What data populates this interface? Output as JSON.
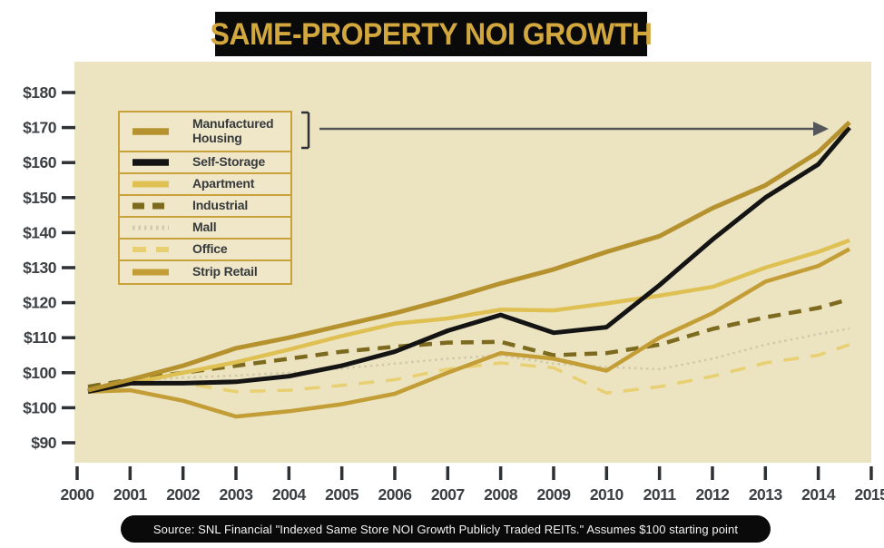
{
  "title": "SAME-PROPERTY NOI GROWTH",
  "source_note": "Source: SNL Financial \"Indexed Same Store NOI Growth Publicly Traded REITs.\" Assumes $100 starting point",
  "colors": {
    "title_box_bg": "#0a0a0a",
    "title_text": "#d2a73e",
    "plot_bg": "#ece3c1",
    "legend_bg": "#f0e7c8",
    "legend_border": "#c8a33c",
    "axis_text": "#3c4043",
    "tick": "#2e3133",
    "arrow": "#55565a",
    "source_bg": "#0a0a0a",
    "source_text": "#f4f4f4"
  },
  "chart_data": {
    "type": "line",
    "title": "SAME-PROPERTY NOI GROWTH",
    "x": [
      "2000",
      "2001",
      "2002",
      "2003",
      "2004",
      "2005",
      "2006",
      "2007",
      "2008",
      "2009",
      "2010",
      "2011",
      "2012",
      "2013",
      "2014",
      "2015"
    ],
    "y_axis_labels": [
      "$180",
      "$170",
      "$160",
      "$150",
      "$140",
      "$130",
      "$120",
      "$110",
      "$100",
      "$100",
      "$90"
    ],
    "y_axis_note": "axis shows $100 twice (as printed in original); band between $100 and $110 is double-height",
    "legend_position": "upper-left box; bracket and arrow point from Manufactured Housing entry to 2015 endpoint",
    "grid": false,
    "series": [
      {
        "name": "Manufactured Housing",
        "color": "#b6922e",
        "style": "solid",
        "width": 5,
        "values": [
          102.5,
          104,
          106,
          108.5,
          110,
          113.5,
          117,
          121,
          125.5,
          129.5,
          134.5,
          139,
          147,
          153.5,
          163,
          171.5
        ]
      },
      {
        "name": "Self-Storage",
        "color": "#141414",
        "style": "solid",
        "width": 5,
        "values": [
          102.3,
          103.5,
          103.5,
          103.7,
          104.5,
          106,
          108,
          112,
          116.5,
          111.4,
          113,
          125,
          138,
          150,
          159.5,
          170
        ]
      },
      {
        "name": "Apartment",
        "color": "#dfc052",
        "style": "solid",
        "width": 4.5,
        "values": [
          102.5,
          103.5,
          105,
          106.5,
          108.3,
          110.5,
          114,
          115.5,
          118,
          117.8,
          119.8,
          122,
          124.5,
          130,
          134.5,
          137.8
        ]
      },
      {
        "name": "Industrial",
        "color": "#7c6a1e",
        "style": "dashed",
        "width": 4.5,
        "values": [
          103,
          104,
          105,
          106,
          107,
          108,
          108.7,
          109.3,
          109.4,
          107.5,
          107.8,
          109,
          112.5,
          115.8,
          118.5,
          121
        ]
      },
      {
        "name": "Mall",
        "color": "#d0c8ad",
        "style": "dotted",
        "width": 2.5,
        "values": [
          102.8,
          103.8,
          104.3,
          104.6,
          105,
          105.6,
          106.3,
          107,
          107.5,
          106.3,
          105.8,
          105.5,
          107,
          109,
          111,
          112.6
        ]
      },
      {
        "name": "Office",
        "color": "#e8d072",
        "style": "longdash",
        "width": 3.5,
        "values": [
          102.3,
          103.3,
          103.5,
          102.3,
          102.5,
          103.2,
          104,
          105.5,
          106.4,
          105.7,
          102.1,
          103,
          104.5,
          106.4,
          107.5,
          109
        ]
      },
      {
        "name": "Strip Retail",
        "color": "#c39d35",
        "style": "solid",
        "width": 4.5,
        "values": [
          102.3,
          102.5,
          101,
          97.5,
          99,
          100.5,
          102,
          105,
          107.8,
          107,
          105.3,
          110,
          117,
          126,
          130.5,
          135.3
        ]
      }
    ]
  }
}
